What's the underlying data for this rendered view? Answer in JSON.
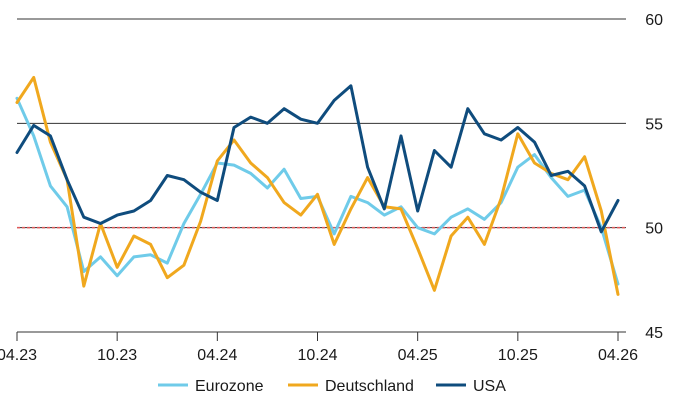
{
  "chart_data": {
    "type": "line",
    "x": [
      "04.23",
      "05.23",
      "06.23",
      "07.23",
      "08.23",
      "09.23",
      "10.23",
      "11.23",
      "12.23",
      "01.24",
      "02.24",
      "03.24",
      "04.24",
      "05.24",
      "06.24",
      "07.24",
      "08.24",
      "09.24",
      "10.24",
      "11.24",
      "12.24",
      "01.25",
      "02.25",
      "03.25",
      "04.25",
      "05.25",
      "06.25",
      "07.25",
      "08.25",
      "09.25",
      "10.25",
      "11.25",
      "12.25",
      "01.26",
      "02.26",
      "03.26",
      "04.26"
    ],
    "x_tick_labels": [
      "04.23",
      "10.23",
      "04.24",
      "10.24",
      "04.25",
      "10.25",
      "04.26"
    ],
    "y_ticks": [
      45,
      50,
      55,
      60
    ],
    "ylim": [
      45,
      60
    ],
    "reference_line": 50,
    "grid": "horizontal",
    "legend_position": "bottom",
    "series": [
      {
        "name": "Eurozone",
        "color": "#6fcbe9",
        "values": [
          56.2,
          54.4,
          52.0,
          51.0,
          47.9,
          48.6,
          47.7,
          48.6,
          48.7,
          48.3,
          50.2,
          51.6,
          53.1,
          53.0,
          52.6,
          51.9,
          52.8,
          51.4,
          51.5,
          49.7,
          51.5,
          51.2,
          50.6,
          51.0,
          50.0,
          49.7,
          50.5,
          50.9,
          50.4,
          51.2,
          52.9,
          53.5,
          52.4,
          51.5,
          51.8,
          50.0,
          47.3
        ]
      },
      {
        "name": "Deutschland",
        "color": "#f0a81e",
        "values": [
          56.0,
          57.2,
          54.1,
          52.3,
          47.2,
          50.2,
          48.1,
          49.6,
          49.2,
          47.6,
          48.2,
          50.3,
          53.2,
          54.2,
          53.1,
          52.4,
          51.2,
          50.6,
          51.6,
          49.2,
          50.9,
          52.4,
          51.0,
          50.9,
          49.0,
          47.0,
          49.6,
          50.5,
          49.2,
          51.4,
          54.5,
          53.1,
          52.6,
          52.3,
          53.4,
          50.8,
          46.8
        ]
      },
      {
        "name": "USA",
        "color": "#0f4c7d",
        "values": [
          53.6,
          54.9,
          54.4,
          52.3,
          50.5,
          50.2,
          50.6,
          50.8,
          51.3,
          52.5,
          52.3,
          51.7,
          51.3,
          54.8,
          55.3,
          55.0,
          55.7,
          55.2,
          55.0,
          56.1,
          56.8,
          52.9,
          50.9,
          54.4,
          50.8,
          53.7,
          52.9,
          55.7,
          54.5,
          54.2,
          54.8,
          54.1,
          52.5,
          52.7,
          52.0,
          49.8,
          51.3
        ]
      }
    ]
  }
}
